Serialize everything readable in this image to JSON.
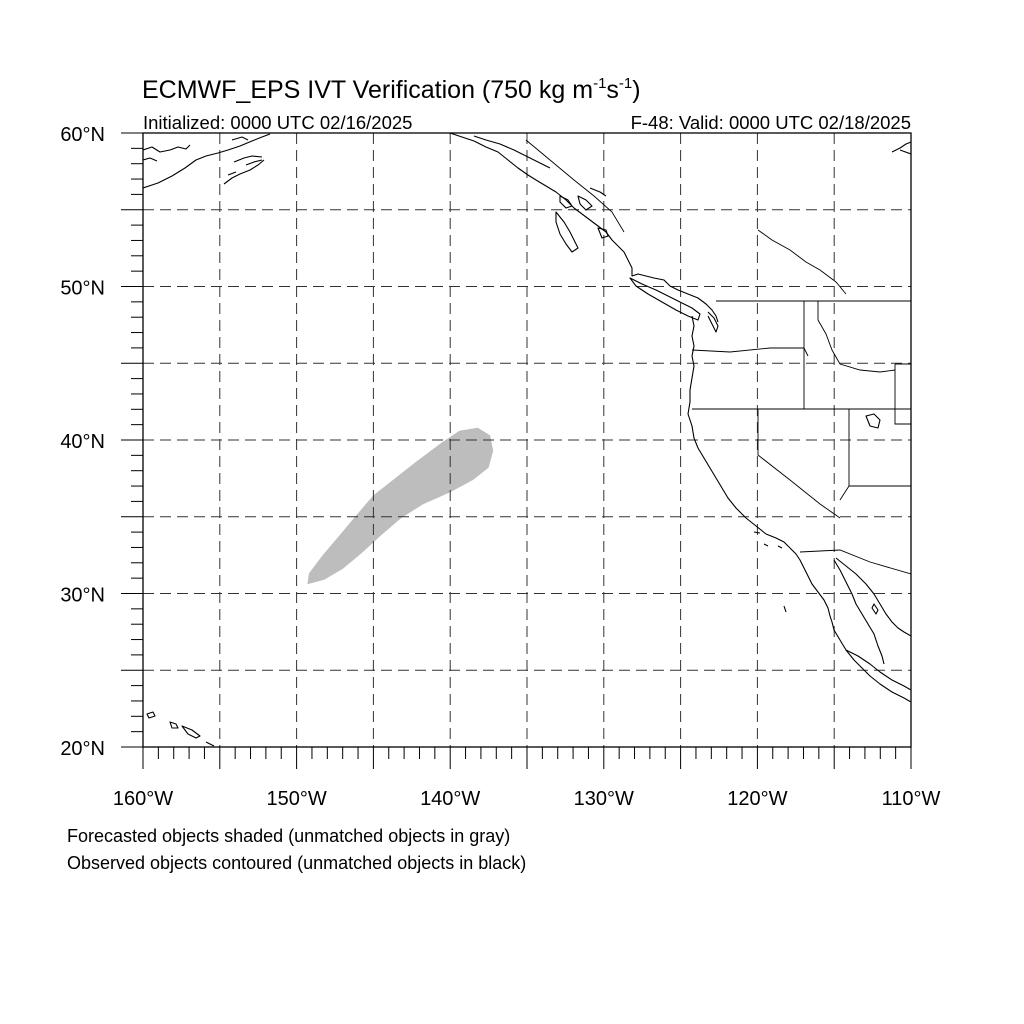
{
  "title": {
    "main": "ECMWF_EPS IVT Verification (750 kg m",
    "sup1": "-1",
    "mid": "s",
    "sup2": "-1",
    "end": ")"
  },
  "subtitle_left": "Initialized: 0000 UTC 02/16/2025",
  "subtitle_right": "F-48: Valid: 0000 UTC 02/18/2025",
  "map": {
    "lon_range": [
      -160,
      -110
    ],
    "lat_range": [
      20,
      60
    ],
    "grid_lons": [
      -155,
      -150,
      -145,
      -140,
      -135,
      -130,
      -125,
      -120,
      -115
    ],
    "grid_lats": [
      25,
      30,
      35,
      40,
      45,
      50,
      55
    ],
    "lat_labels": [
      {
        "lat": 60,
        "text": "60°N"
      },
      {
        "lat": 50,
        "text": "50°N"
      },
      {
        "lat": 40,
        "text": "40°N"
      },
      {
        "lat": 30,
        "text": "30°N"
      },
      {
        "lat": 20,
        "text": "20°N"
      }
    ],
    "lon_labels": [
      {
        "lon": -160,
        "text": "160°W"
      },
      {
        "lon": -150,
        "text": "150°W"
      },
      {
        "lon": -140,
        "text": "140°W"
      },
      {
        "lon": -130,
        "text": "130°W"
      },
      {
        "lon": -120,
        "text": "120°W"
      },
      {
        "lon": -110,
        "text": "110°W"
      }
    ],
    "forecast_object": {
      "status": "unmatched",
      "color": "#bdbdbd",
      "outline": [
        [
          -149.3,
          30.6
        ],
        [
          -148.2,
          30.9
        ],
        [
          -147.0,
          31.6
        ],
        [
          -145.8,
          32.6
        ],
        [
          -144.6,
          33.7
        ],
        [
          -143.2,
          34.9
        ],
        [
          -141.8,
          35.8
        ],
        [
          -140.0,
          36.6
        ],
        [
          -138.5,
          37.4
        ],
        [
          -137.5,
          38.2
        ],
        [
          -137.2,
          39.3
        ],
        [
          -137.4,
          40.3
        ],
        [
          -138.2,
          40.8
        ],
        [
          -139.4,
          40.6
        ],
        [
          -140.6,
          39.8
        ],
        [
          -142.2,
          38.6
        ],
        [
          -143.6,
          37.5
        ],
        [
          -145.0,
          36.4
        ],
        [
          -146.2,
          35.0
        ],
        [
          -147.2,
          33.8
        ],
        [
          -148.3,
          32.5
        ],
        [
          -149.2,
          31.3
        ]
      ]
    }
  },
  "captions": [
    "Forecasted objects shaded (unmatched objects in gray)",
    "Observed objects contoured (unmatched objects in black)"
  ]
}
